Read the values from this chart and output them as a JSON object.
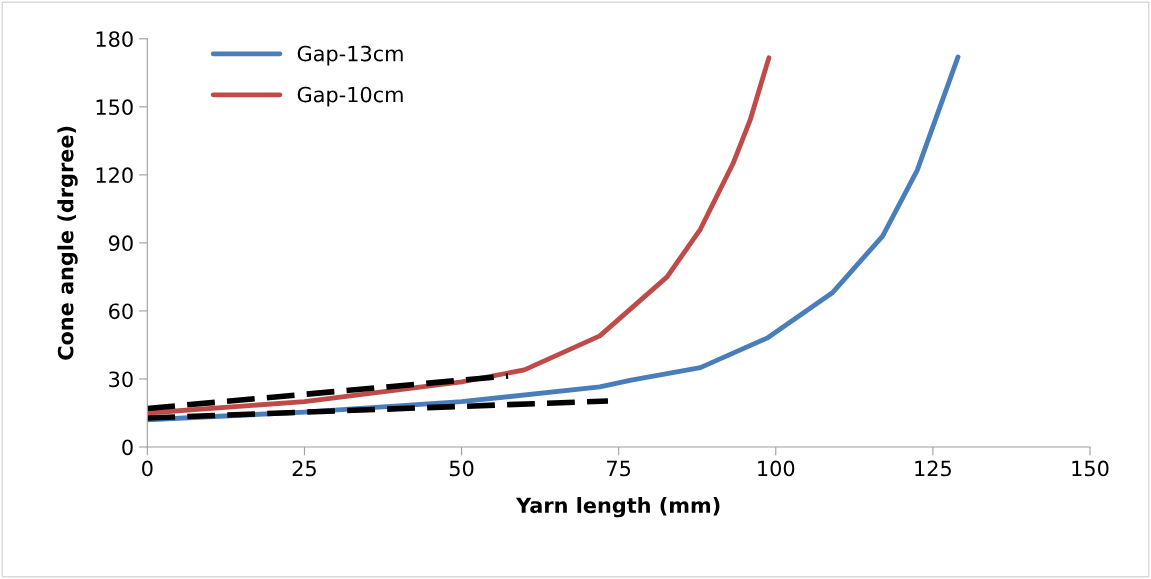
{
  "chart_data": {
    "type": "line",
    "xlabel": "Yarn length (mm)",
    "ylabel": "Cone angle (drgree)",
    "xlim": [
      0,
      150
    ],
    "xticks": [
      0,
      25,
      50,
      75,
      100,
      125,
      150
    ],
    "ylim": [
      0,
      180
    ],
    "yticks": [
      0,
      30,
      60,
      90,
      120,
      150,
      180
    ],
    "grid": false,
    "legend": "top left",
    "marker": "none",
    "line_style": "solid",
    "series": [
      {
        "name": "Gap-13cm",
        "color": "#4a7ebb",
        "x": [
          0,
          25,
          50,
          72,
          77,
          88,
          98.6,
          109,
          117,
          122.5,
          129
        ],
        "values": [
          12,
          15.4,
          20,
          26.5,
          29.5,
          35,
          48,
          68,
          93,
          122,
          172
        ]
      },
      {
        "name": "Gap-10cm",
        "color": "#be4b48",
        "x": [
          0,
          25,
          50,
          60,
          72,
          82.7,
          88,
          93.2,
          95.9,
          98.9
        ],
        "values": [
          15,
          20,
          28.7,
          34,
          49,
          75,
          96,
          125,
          144,
          171.6
        ]
      },
      {
        "color": "#000000",
        "line_style": "dashed",
        "x": [
          0,
          57.4
        ],
        "values": [
          17,
          31.3
        ]
      },
      {
        "color": "#000000",
        "line_style": "dashed",
        "x": [
          0,
          73.3
        ],
        "values": [
          12.8,
          20.3
        ]
      }
    ]
  }
}
